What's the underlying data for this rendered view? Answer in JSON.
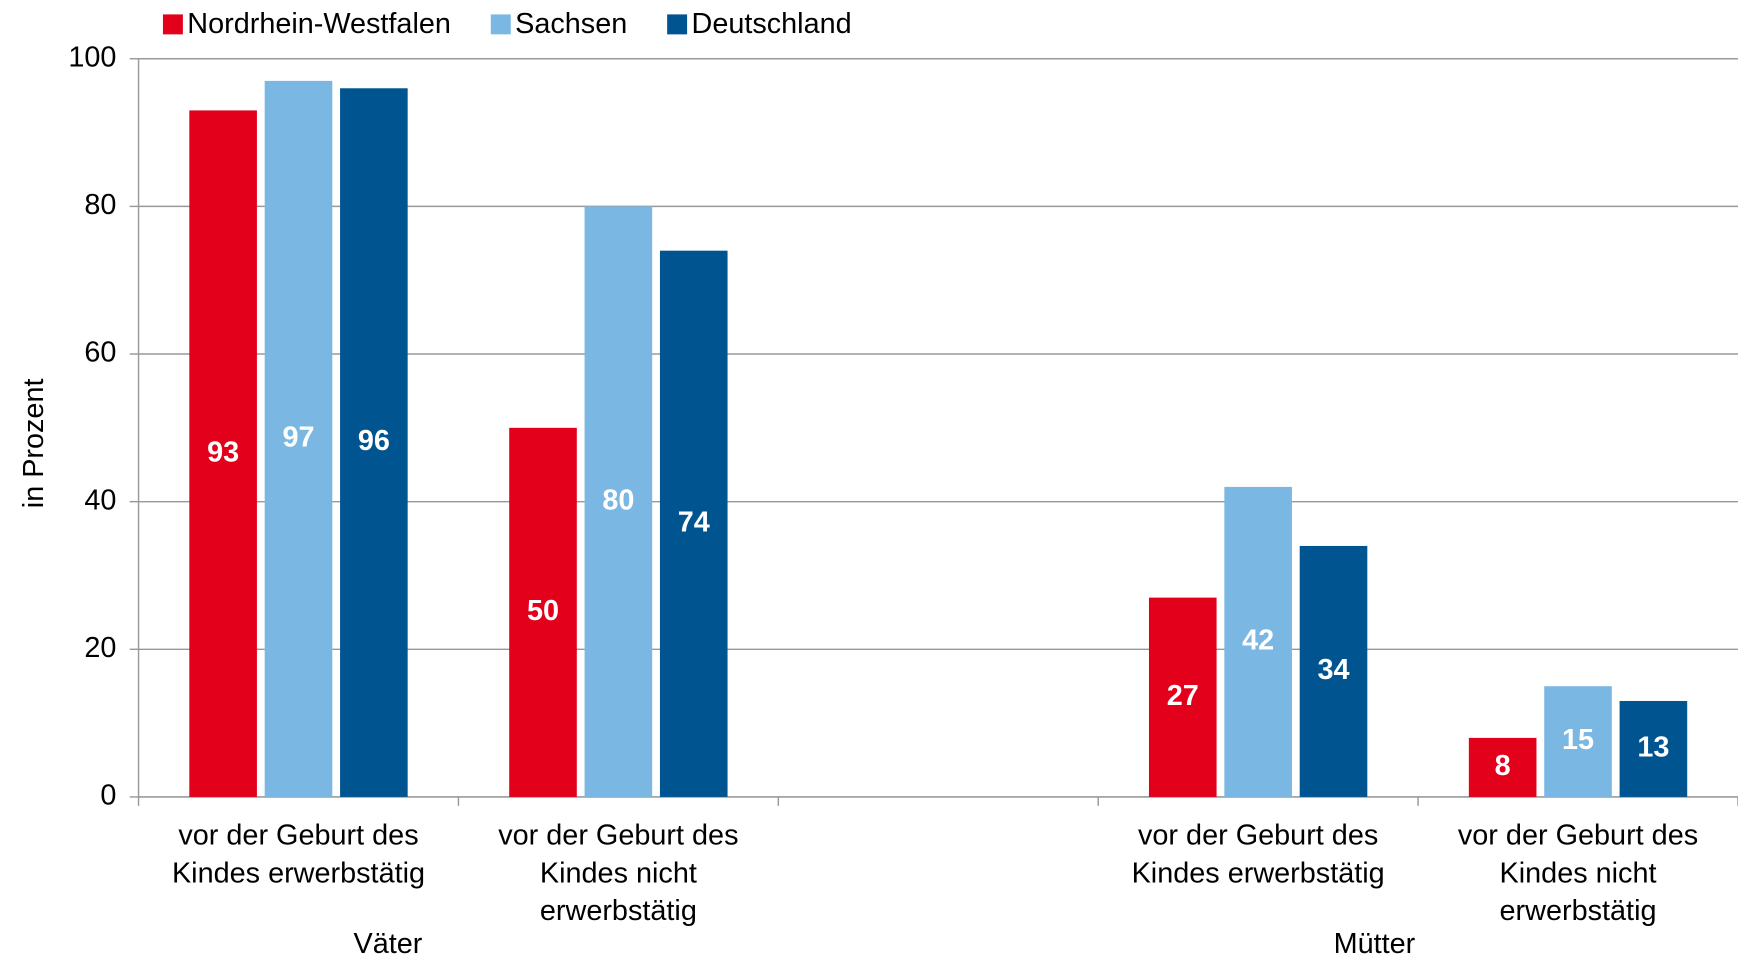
{
  "chart_data": {
    "type": "bar",
    "y_label": "in Prozent",
    "categories": [
      "vor der Geburt des Kindes erwerbstätig",
      "vor der Geburt des Kindes nicht erwerbstätig",
      null,
      "vor der Geburt des Kindes erwerbstätig",
      "vor der Geburt des Kindes nicht erwerbstätig"
    ],
    "group_labels": [
      "Väter",
      "Mütter"
    ],
    "series": [
      {
        "name": "Nordrhein-Westfalen",
        "color": "#e2001a",
        "values": [
          93,
          50,
          null,
          27,
          8
        ]
      },
      {
        "name": "Sachsen",
        "color": "#7ab8e3",
        "values": [
          97,
          80,
          null,
          42,
          15
        ]
      },
      {
        "name": "Deutschland",
        "color": "#005591",
        "values": [
          96,
          74,
          null,
          34,
          13
        ]
      }
    ],
    "ylim": [
      0,
      100
    ],
    "yticks": [
      0,
      20,
      40,
      60,
      80,
      100
    ],
    "grid": true,
    "legend": "top"
  }
}
